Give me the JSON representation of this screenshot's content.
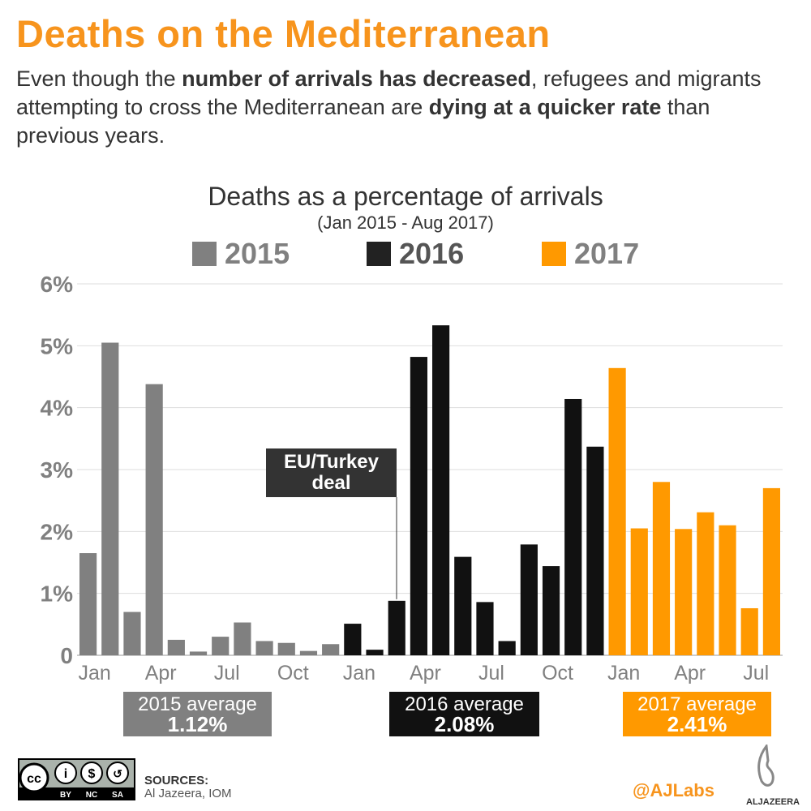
{
  "header": {
    "title": "Deaths on the Mediterranean",
    "subtitle_parts": [
      {
        "t": "Even though the ",
        "b": false
      },
      {
        "t": "number of arrivals has decreased",
        "b": true
      },
      {
        "t": ", refugees and migrants attempting to cross the Mediterranean are ",
        "b": false
      },
      {
        "t": "dying at a quicker rate",
        "b": true
      },
      {
        "t": " than previous years.",
        "b": false
      }
    ]
  },
  "chart_data": {
    "type": "bar",
    "title": "Deaths as a percentage of arrivals",
    "subtitle": "(Jan 2015 - Aug 2017)",
    "ylim": [
      0,
      6
    ],
    "yticks": [
      "0",
      "1%",
      "2%",
      "3%",
      "4%",
      "5%",
      "6%"
    ],
    "grid": true,
    "xtick_labels": [
      "Jan",
      "Apr",
      "Jul",
      "Oct",
      "Jan",
      "Apr",
      "Jul",
      "Oct",
      "Jan",
      "Apr",
      "Jul"
    ],
    "legend_placement": "top",
    "series": [
      {
        "name": "2015",
        "color": "#808080",
        "values": [
          1.65,
          5.05,
          0.7,
          4.38,
          0.25,
          0.06,
          0.3,
          0.53,
          0.23,
          0.2,
          0.07,
          0.18
        ]
      },
      {
        "name": "2016",
        "color": "#111111",
        "values": [
          0.51,
          0.09,
          0.88,
          4.82,
          5.33,
          1.59,
          0.86,
          0.23,
          1.79,
          1.44,
          4.14,
          3.37
        ]
      },
      {
        "name": "2017",
        "color": "#ff9900",
        "values": [
          4.64,
          2.05,
          2.8,
          2.04,
          2.31,
          2.1,
          0.76,
          2.7
        ]
      }
    ],
    "annotation": {
      "text1": "EU/Turkey",
      "text2": "deal",
      "month": "Mar 2016"
    },
    "averages": [
      {
        "label": "2015 average",
        "value": "1.12%",
        "color": "#808080"
      },
      {
        "label": "2016 average",
        "value": "2.08%",
        "color": "#111111"
      },
      {
        "label": "2017 average",
        "value": "2.41%",
        "color": "#ff9900"
      }
    ]
  },
  "footer": {
    "license": [
      "BY",
      "NC",
      "SA"
    ],
    "sources_label": "SOURCES:",
    "sources": "Al Jazeera, IOM",
    "handle": "@AJLabs",
    "brand": "ALJAZEERA"
  }
}
